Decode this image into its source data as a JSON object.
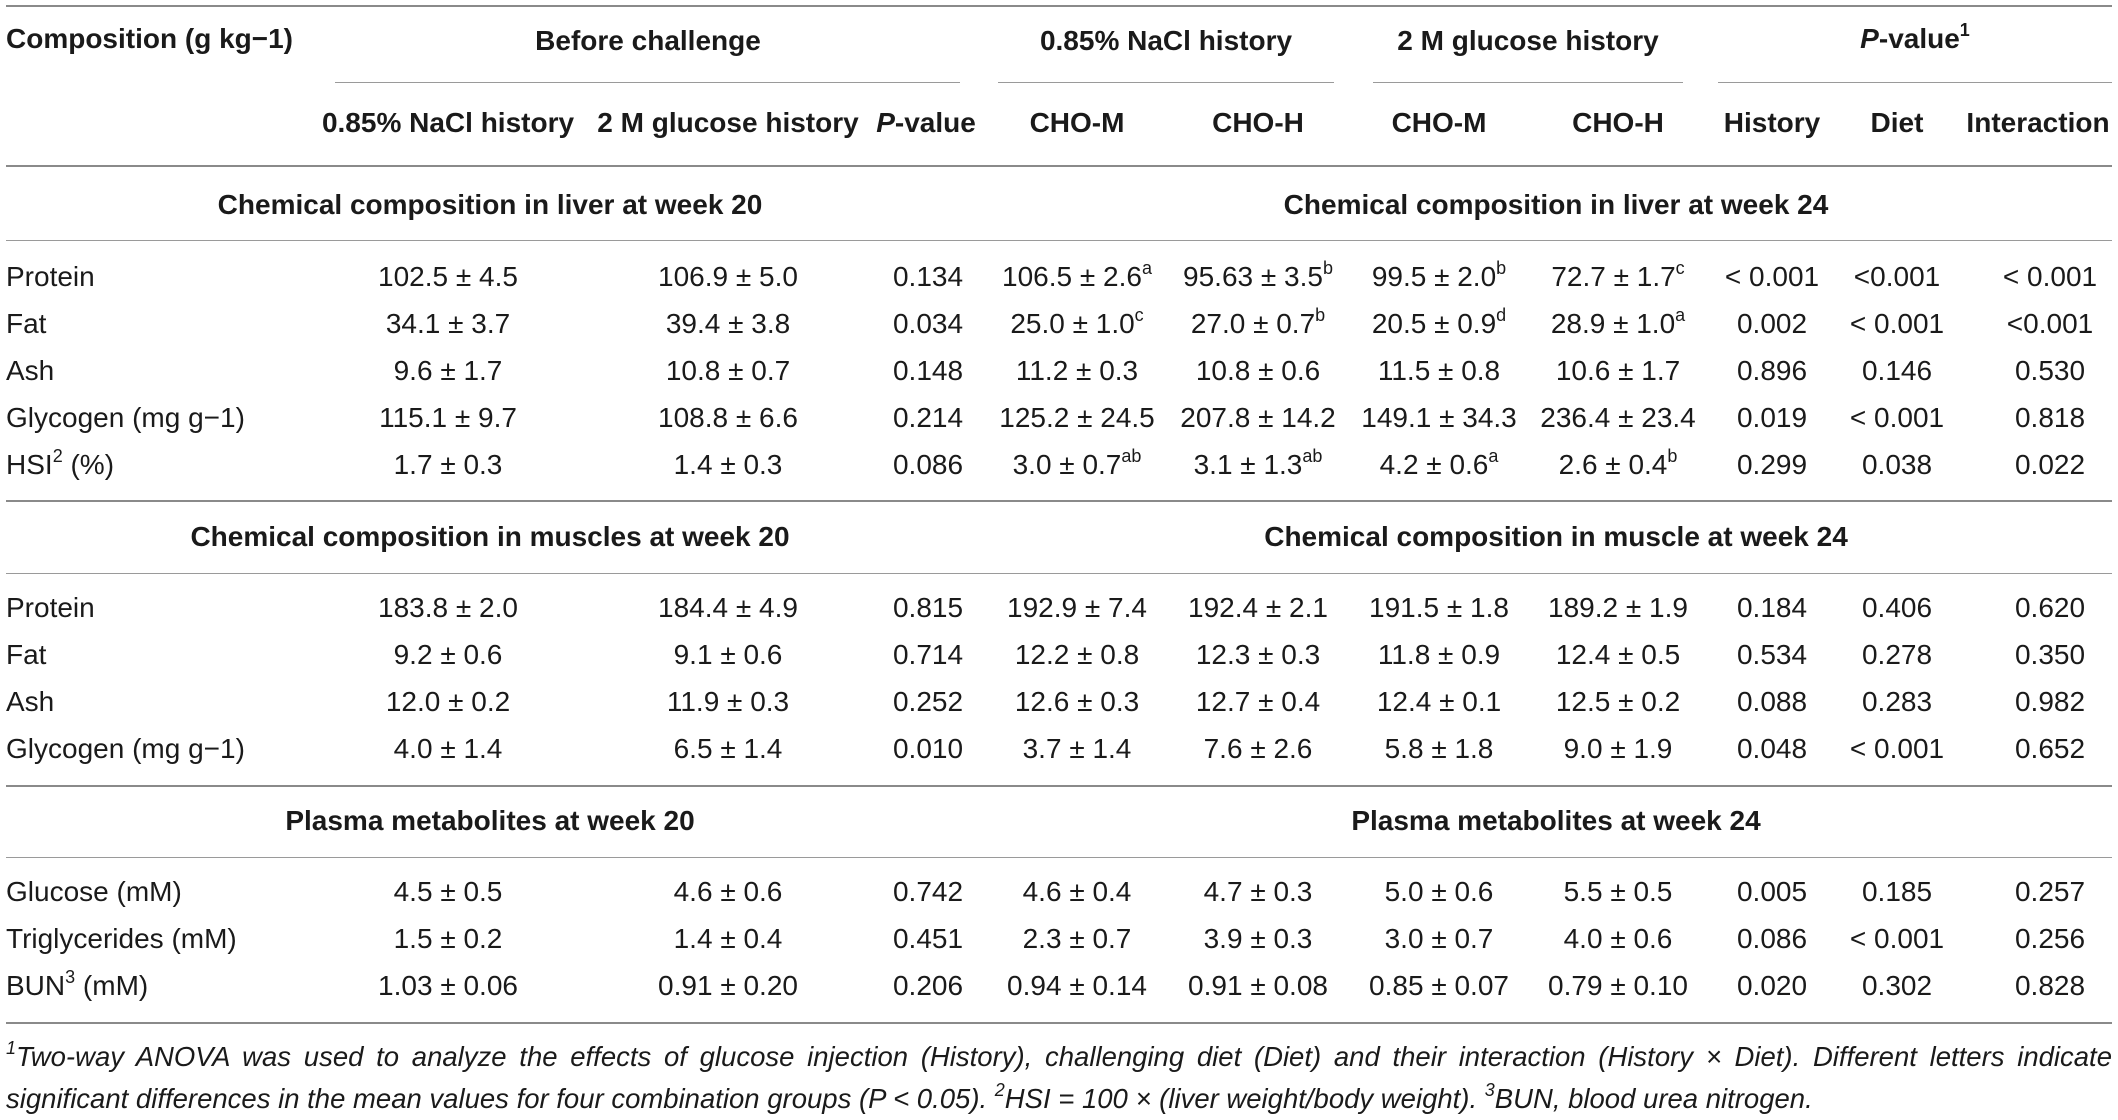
{
  "header": {
    "composition": "Composition (g kg−1)",
    "before_challenge": "Before challenge",
    "nacl_history_group": "0.85% NaCl history",
    "glucose_history_group": "2 M glucose history",
    "pvalue_group_italic": "P",
    "pvalue_group_rest": "-value",
    "pvalue_group_sup": "1",
    "sub": {
      "nacl": "0.85% NaCl history",
      "glucose": "2 M glucose history",
      "pvalue_italic": "P",
      "pvalue_rest": "-value",
      "cho_m_1": "CHO-M",
      "cho_h_1": "CHO-H",
      "cho_m_2": "CHO-M",
      "cho_h_2": "CHO-H",
      "history": "History",
      "diet": "Diet",
      "interaction": "Interaction"
    }
  },
  "sections": {
    "liver20": "Chemical composition in liver at week 20",
    "liver24": "Chemical composition in liver at week 24",
    "muscle20": "Chemical composition in muscles at week 20",
    "muscle24": "Chemical composition in muscle at week 24",
    "plasma20": "Plasma metabolites at week 20",
    "plasma24": "Plasma metabolites at week 24"
  },
  "liver": {
    "protein": {
      "label": "Protein",
      "c1": "102.5 ± 4.5",
      "c2": "106.9 ± 5.0",
      "p": "0.134",
      "c4": "106.5 ± 2.6",
      "c4s": "a",
      "c5": "95.63 ± 3.5",
      "c5s": "b",
      "c6": "99.5 ± 2.0",
      "c6s": "b",
      "c7": "72.7 ± 1.7",
      "c7s": "c",
      "h": "< 0.001",
      "d": "<0.001",
      "i": "< 0.001"
    },
    "fat": {
      "label": "Fat",
      "c1": "34.1 ± 3.7",
      "c2": "39.4 ± 3.8",
      "p": "0.034",
      "c4": "25.0 ± 1.0",
      "c4s": "c",
      "c5": "27.0 ± 0.7",
      "c5s": "b",
      "c6": "20.5 ± 0.9",
      "c6s": "d",
      "c7": "28.9 ± 1.0",
      "c7s": "a",
      "h": "0.002",
      "d": "< 0.001",
      "i": "<0.001"
    },
    "ash": {
      "label": "Ash",
      "c1": "9.6 ± 1.7",
      "c2": "10.8 ± 0.7",
      "p": "0.148",
      "c4": "11.2 ± 0.3",
      "c5": "10.8 ± 0.6",
      "c6": "11.5 ± 0.8",
      "c7": "10.6 ± 1.7",
      "h": "0.896",
      "d": "0.146",
      "i": "0.530"
    },
    "glycogen": {
      "label": "Glycogen (mg g−1)",
      "c1": "115.1 ± 9.7",
      "c2": "108.8 ± 6.6",
      "p": "0.214",
      "c4": "125.2 ± 24.5",
      "c5": "207.8 ± 14.2",
      "c6": "149.1 ± 34.3",
      "c7": "236.4 ± 23.4",
      "h": "0.019",
      "d": "< 0.001",
      "i": "0.818"
    },
    "hsi": {
      "label_a": "HSI",
      "label_sup": "2",
      "label_b": " (%)",
      "c1": "1.7 ± 0.3",
      "c2": "1.4 ± 0.3",
      "p": "0.086",
      "c4": "3.0 ± 0.7",
      "c4s": "ab",
      "c5": "3.1 ± 1.3",
      "c5s": "ab",
      "c6": "4.2 ± 0.6",
      "c6s": "a",
      "c7": "2.6 ± 0.4",
      "c7s": "b",
      "h": "0.299",
      "d": "0.038",
      "i": "0.022"
    }
  },
  "muscle": {
    "protein": {
      "label": "Protein",
      "c1": "183.8 ± 2.0",
      "c2": "184.4 ± 4.9",
      "p": "0.815",
      "c4": "192.9 ± 7.4",
      "c5": "192.4 ± 2.1",
      "c6": "191.5 ± 1.8",
      "c7": "189.2 ± 1.9",
      "h": "0.184",
      "d": "0.406",
      "i": "0.620"
    },
    "fat": {
      "label": "Fat",
      "c1": "9.2 ± 0.6",
      "c2": "9.1 ± 0.6",
      "p": "0.714",
      "c4": "12.2 ± 0.8",
      "c5": "12.3 ± 0.3",
      "c6": "11.8 ± 0.9",
      "c7": "12.4 ± 0.5",
      "h": "0.534",
      "d": "0.278",
      "i": "0.350"
    },
    "ash": {
      "label": "Ash",
      "c1": "12.0 ± 0.2",
      "c2": "11.9 ± 0.3",
      "p": "0.252",
      "c4": "12.6 ± 0.3",
      "c5": "12.7 ± 0.4",
      "c6": "12.4 ± 0.1",
      "c7": "12.5 ± 0.2",
      "h": "0.088",
      "d": "0.283",
      "i": "0.982"
    },
    "glycogen": {
      "label": "Glycogen (mg g−1)",
      "c1": "4.0 ± 1.4",
      "c2": "6.5 ± 1.4",
      "p": "0.010",
      "c4": "3.7 ± 1.4",
      "c5": "7.6 ± 2.6",
      "c6": "5.8 ± 1.8",
      "c7": "9.0 ± 1.9",
      "h": "0.048",
      "d": "< 0.001",
      "i": "0.652"
    }
  },
  "plasma": {
    "glucose": {
      "label": "Glucose (mM)",
      "c1": "4.5 ± 0.5",
      "c2": "4.6 ± 0.6",
      "p": "0.742",
      "c4": "4.6 ± 0.4",
      "c5": "4.7 ± 0.3",
      "c6": "5.0 ± 0.6",
      "c7": "5.5 ± 0.5",
      "h": "0.005",
      "d": "0.185",
      "i": "0.257"
    },
    "tg": {
      "label": "Triglycerides (mM)",
      "c1": "1.5 ± 0.2",
      "c2": "1.4 ± 0.4",
      "p": "0.451",
      "c4": "2.3 ± 0.7",
      "c5": "3.9 ± 0.3",
      "c6": "3.0 ± 0.7",
      "c7": "4.0 ± 0.6",
      "h": "0.086",
      "d": "< 0.001",
      "i": "0.256"
    },
    "bun": {
      "label_a": "BUN",
      "label_sup": "3",
      "label_b": " (mM)",
      "c1": "1.03 ± 0.06",
      "c2": "0.91 ± 0.20",
      "p": "0.206",
      "c4": "0.94 ± 0.14",
      "c5": "0.91 ± 0.08",
      "c6": "0.85 ± 0.07",
      "c7": "0.79 ± 0.10",
      "h": "0.020",
      "d": "0.302",
      "i": "0.828"
    }
  },
  "footnote": {
    "s1": "1",
    "t1": "Two-way ANOVA was used to analyze the effects of glucose injection (History), challenging diet (Diet) and their interaction (History × Diet). Different letters indicate significant differences in the mean values for four combination groups (P < 0.05). ",
    "s2": "2",
    "t2": "HSI = 100 × (liver weight/body weight). ",
    "s3": "3",
    "t3": "BUN, blood urea nitrogen."
  }
}
